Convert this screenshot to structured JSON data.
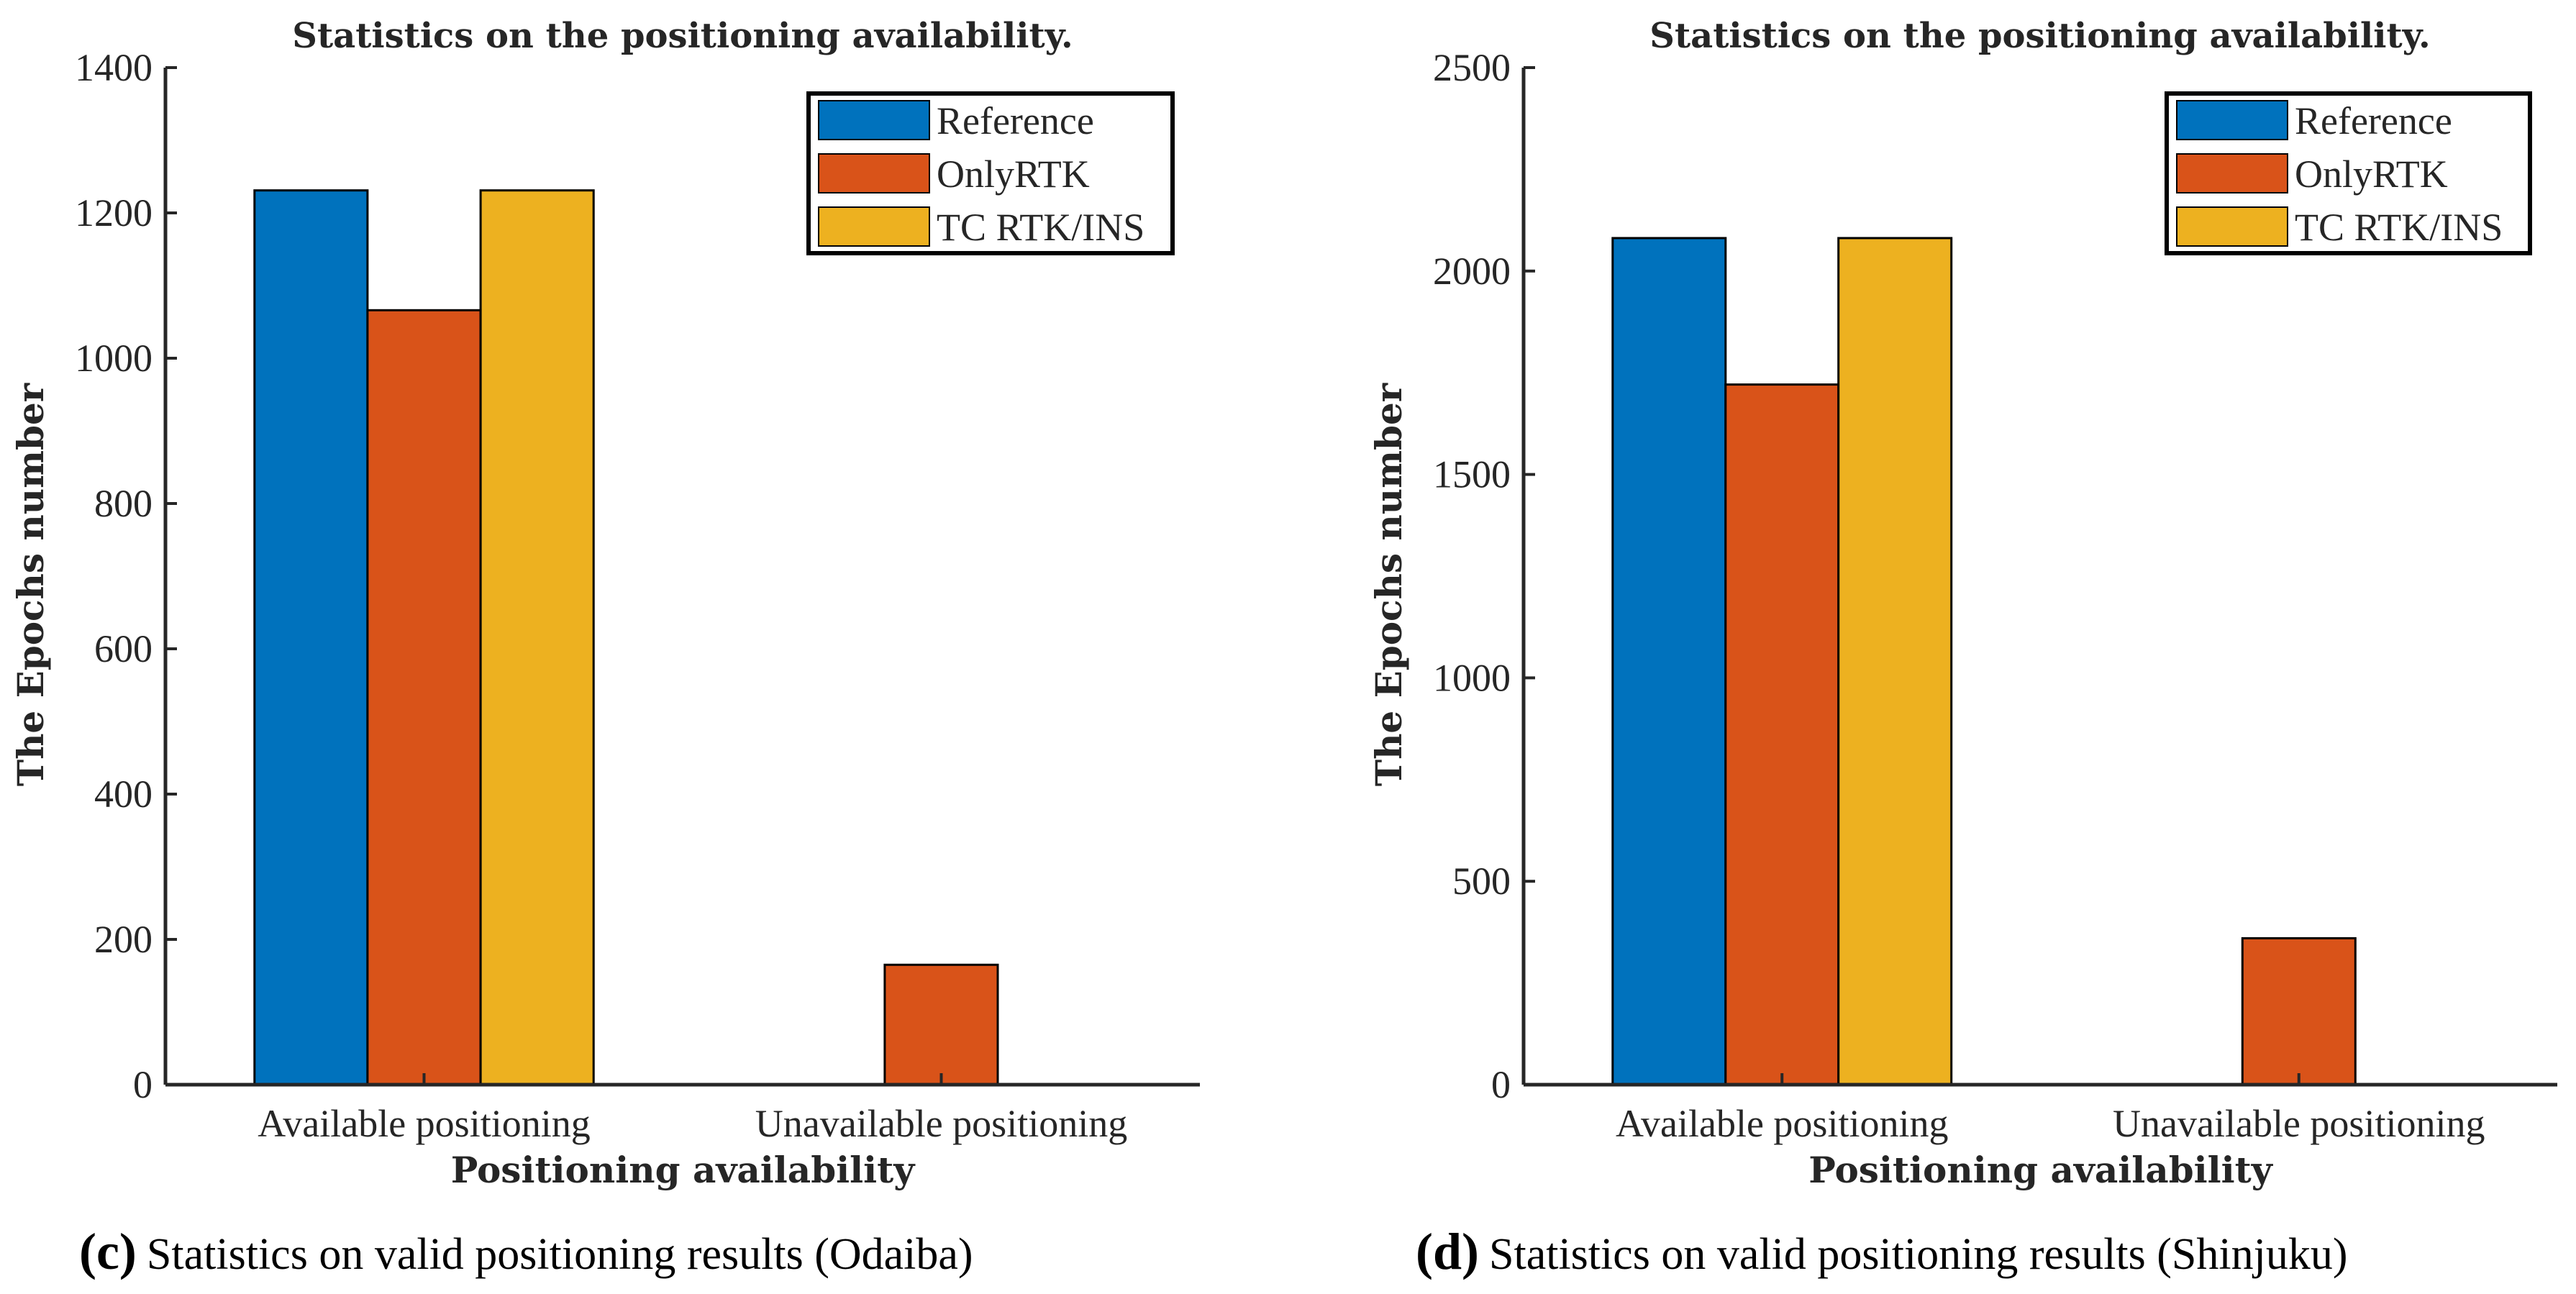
{
  "chart_data": [
    {
      "type": "bar",
      "title": "Statistics on the positioning availability.",
      "xlabel": "Positioning availability",
      "ylabel": "The Epochs number",
      "categories": [
        "Available positioning",
        "Unavailable positioning"
      ],
      "series": [
        {
          "name": "Reference",
          "values": [
            1231,
            0
          ],
          "color": "#0072BD"
        },
        {
          "name": "OnlyRTK",
          "values": [
            1066,
            165
          ],
          "color": "#D95319"
        },
        {
          "name": "TC RTK/INS",
          "values": [
            1231,
            0
          ],
          "color": "#EDB120"
        }
      ],
      "ylim": [
        0,
        1400
      ],
      "yticks": [
        0,
        200,
        400,
        600,
        800,
        1000,
        1200,
        1400
      ],
      "legend_position": "top-right",
      "caption_letter": "(c)",
      "caption": "Statistics on valid positioning results (Odaiba)"
    },
    {
      "type": "bar",
      "title": "Statistics on the positioning availability.",
      "xlabel": "Positioning availability",
      "ylabel": "The Epochs number",
      "categories": [
        "Available positioning",
        "Unavailable positioning"
      ],
      "series": [
        {
          "name": "Reference",
          "values": [
            2081,
            0
          ],
          "color": "#0072BD"
        },
        {
          "name": "OnlyRTK",
          "values": [
            1721,
            360
          ],
          "color": "#D95319"
        },
        {
          "name": "TC RTK/INS",
          "values": [
            2081,
            0
          ],
          "color": "#EDB120"
        }
      ],
      "ylim": [
        0,
        2500
      ],
      "yticks": [
        0,
        500,
        1000,
        1500,
        2000,
        2500
      ],
      "legend_position": "top-right",
      "caption_letter": "(d)",
      "caption": "Statistics on valid positioning results (Shinjuku)"
    }
  ]
}
